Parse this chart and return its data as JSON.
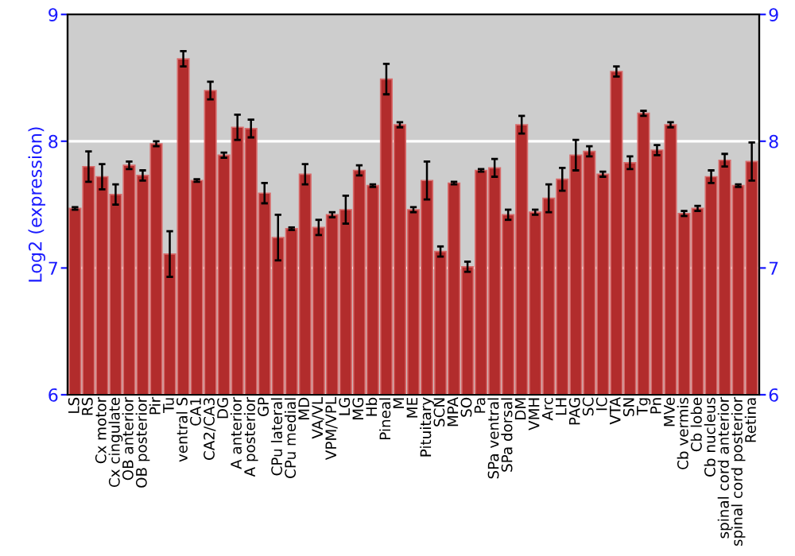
{
  "chart_data": {
    "type": "bar",
    "ylabel": "Log2 (expression)",
    "categories": [
      "LS",
      "RS",
      "Cx motor",
      "Cx cingulate",
      "OB anterior",
      "OB posterior",
      "Pir",
      "Tu",
      "ventral S",
      "CA1",
      "CA2/CA3",
      "DG",
      "A anterior",
      "A posterior",
      "GP",
      "CPu lateral",
      "CPu medial",
      "MD",
      "VA/VL",
      "VPM/VPL",
      "LG",
      "MG",
      "Hb",
      "Pineal",
      "M",
      "ME",
      "Pituitary",
      "SCN",
      "MPA",
      "SO",
      "Pa",
      "SPa ventral",
      "SPa dorsal",
      "DM",
      "VMH",
      "Arc",
      "LH",
      "PAG",
      "SC",
      "IC",
      "VTA",
      "SN",
      "Tg",
      "Pn",
      "MVe",
      "Cb vermis",
      "Cb lobe",
      "Cb nucleus",
      "spinal cord anterior",
      "spinal cord posterior",
      "Retina"
    ],
    "values": [
      7.47,
      7.8,
      7.72,
      7.58,
      7.81,
      7.73,
      7.98,
      7.11,
      8.65,
      7.69,
      8.4,
      7.89,
      8.11,
      8.1,
      7.59,
      7.24,
      7.31,
      7.74,
      7.32,
      7.42,
      7.46,
      7.77,
      7.65,
      8.49,
      8.13,
      7.46,
      7.69,
      7.13,
      7.67,
      7.01,
      7.77,
      7.79,
      7.42,
      8.13,
      7.44,
      7.55,
      7.7,
      7.89,
      7.92,
      7.74,
      8.55,
      7.83,
      8.22,
      7.93,
      8.13,
      7.43,
      7.47,
      7.72,
      7.85,
      7.65,
      7.84
    ],
    "errors": [
      0.01,
      0.12,
      0.1,
      0.08,
      0.03,
      0.04,
      0.02,
      0.18,
      0.06,
      0.01,
      0.07,
      0.02,
      0.1,
      0.07,
      0.08,
      0.18,
      0.01,
      0.08,
      0.06,
      0.02,
      0.11,
      0.04,
      0.01,
      0.12,
      0.02,
      0.02,
      0.15,
      0.04,
      0.01,
      0.04,
      0.01,
      0.07,
      0.04,
      0.07,
      0.02,
      0.11,
      0.09,
      0.12,
      0.04,
      0.02,
      0.04,
      0.05,
      0.02,
      0.04,
      0.02,
      0.02,
      0.02,
      0.05,
      0.05,
      0.01,
      0.15
    ],
    "color": "#b22c2c",
    "ylim": [
      6,
      9
    ],
    "yticks": [
      6,
      7,
      8,
      9
    ],
    "y2lim": [
      6,
      9
    ],
    "y2ticks": [
      6,
      7,
      8,
      9
    ],
    "grid": "y",
    "legend": false
  }
}
